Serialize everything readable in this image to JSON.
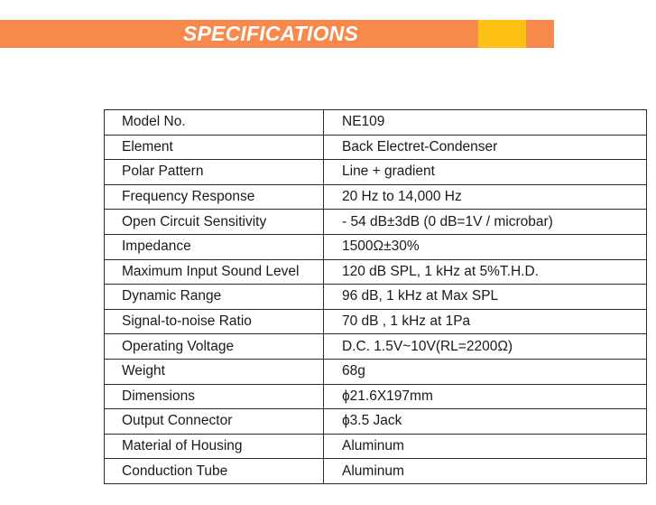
{
  "header": {
    "title": "SPECIFICATIONS",
    "colors": {
      "banner": "#f6894b",
      "accent": "#fdc113",
      "title_text": "#ffffff"
    }
  },
  "specs": [
    {
      "label": "Model No.",
      "value": "NE109"
    },
    {
      "label": "Element",
      "value": "Back Electret-Condenser"
    },
    {
      "label": "Polar Pattern",
      "value": "Line + gradient"
    },
    {
      "label": "Frequency Response",
      "value": "20 Hz to 14,000 Hz"
    },
    {
      "label": "Open Circuit Sensitivity",
      "value": "- 54 dB±3dB (0 dB=1V / microbar)"
    },
    {
      "label": "Impedance",
      "value": "1500Ω±30%"
    },
    {
      "label": "Maximum Input Sound Level",
      "value": "120 dB SPL, 1 kHz at 5%T.H.D."
    },
    {
      "label": "Dynamic Range",
      "value": "96 dB, 1 kHz at Max SPL"
    },
    {
      "label": "Signal-to-noise Ratio",
      "value": "70 dB , 1 kHz at 1Pa"
    },
    {
      "label": "Operating Voltage",
      "value": "D.C. 1.5V~10V(RL=2200Ω)"
    },
    {
      "label": "Weight",
      "value": "68g"
    },
    {
      "label": "Dimensions",
      "value": "ϕ21.6X197mm"
    },
    {
      "label": "Output Connector",
      "value": "ϕ3.5 Jack"
    },
    {
      "label": "Material of Housing",
      "value": "Aluminum"
    },
    {
      "label": "Conduction Tube",
      "value": "Aluminum"
    }
  ]
}
